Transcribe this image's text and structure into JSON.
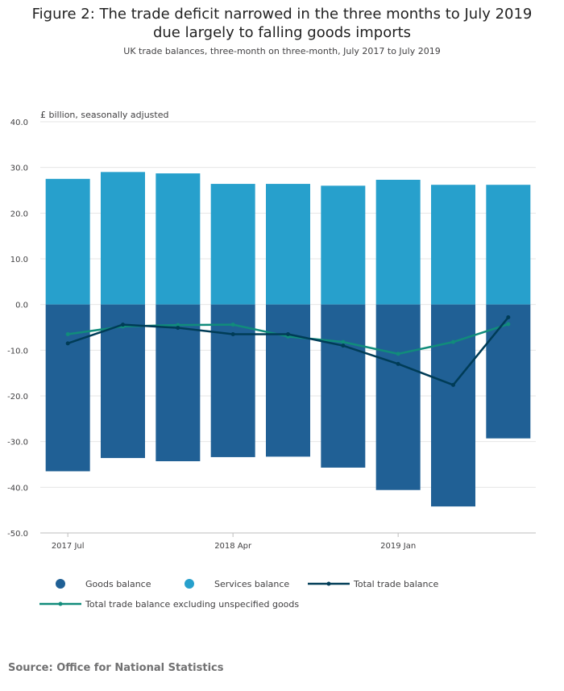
{
  "title": "Figure 2: The trade deficit narrowed in the three months to July 2019 due largely to falling goods imports",
  "subtitle": "UK trade balances, three-month on three-month, July 2017 to July 2019",
  "source": "Source: Office for National Statistics",
  "colors": {
    "goods": "#206095",
    "services": "#27a0cc",
    "total": "#003c57",
    "excl": "#118c7b",
    "grid": "#e6e6e6",
    "axis": "#bebebe"
  },
  "chart_data": {
    "type": "bar",
    "stacked": true,
    "ylabel": "£ billion, seasonally adjusted",
    "ylim": [
      -50,
      40
    ],
    "yticks": [
      "40.0",
      "30.0",
      "20.0",
      "10.0",
      "0.0",
      "-10.0",
      "-20.0",
      "-30.0",
      "-40.0",
      "-50.0"
    ],
    "ytick_values": [
      40,
      30,
      20,
      10,
      0,
      -10,
      -20,
      -30,
      -40,
      -50
    ],
    "xtick_labels": [
      "2017 Jul",
      "",
      "",
      "2018 Apr",
      "",
      "",
      "2019 Jan",
      "",
      ""
    ],
    "grid": true,
    "series": [
      {
        "name": "Goods balance",
        "kind": "bar",
        "values": [
          -36.5,
          -33.6,
          -34.3,
          -33.4,
          -33.3,
          -35.7,
          -40.6,
          -44.2,
          -29.3
        ]
      },
      {
        "name": "Services balance",
        "kind": "bar",
        "values": [
          27.5,
          29.0,
          28.7,
          26.4,
          26.4,
          26.0,
          27.3,
          26.2,
          26.2
        ]
      },
      {
        "name": "Total trade balance",
        "kind": "line",
        "values": [
          -8.5,
          -4.4,
          -5.1,
          -6.5,
          -6.5,
          -9.0,
          -13.0,
          -17.6,
          -2.8
        ]
      },
      {
        "name": "Total trade balance excluding unspecified goods",
        "kind": "line",
        "values": [
          -6.5,
          -4.8,
          -4.5,
          -4.4,
          -7.0,
          -8.2,
          -10.8,
          -8.2,
          -4.3
        ]
      }
    ]
  }
}
